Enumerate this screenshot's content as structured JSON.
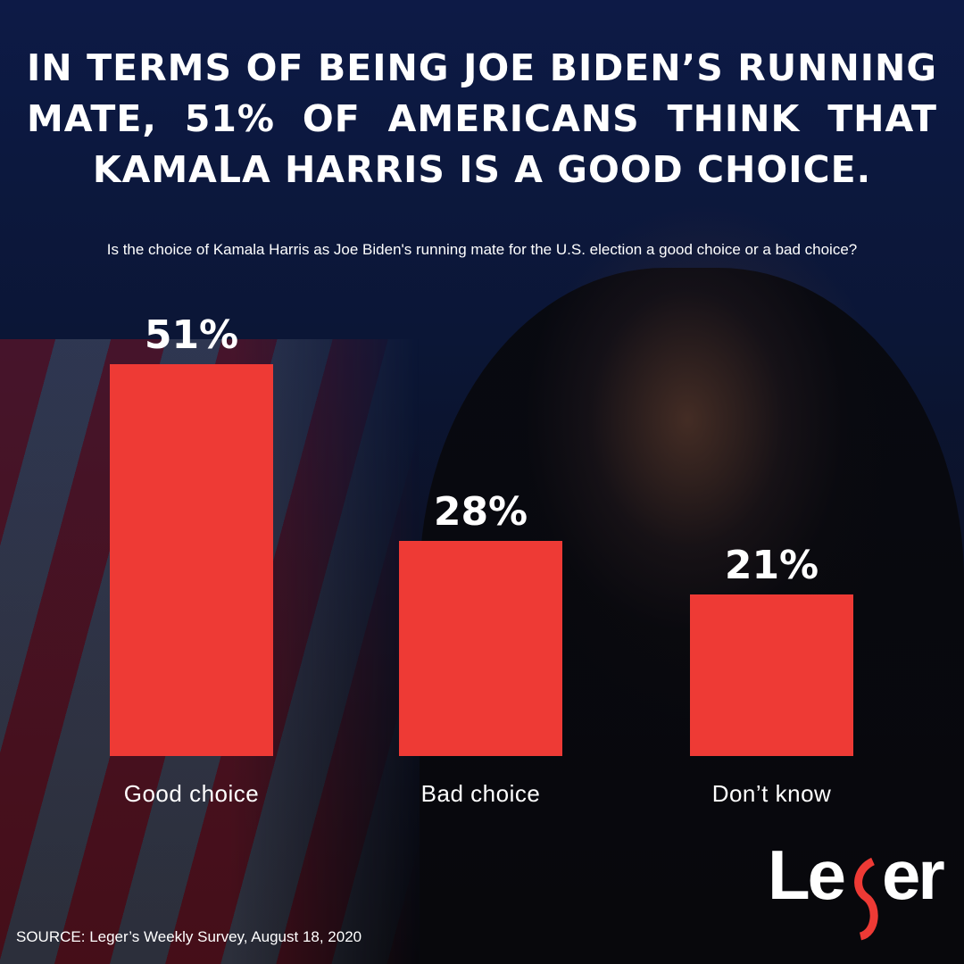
{
  "headline": "IN TERMS OF BEING JOE BIDEN’S RUNNING MATE, 51% OF AMERICANS THINK THAT KAMALA HARRIS IS A GOOD CHOICE.",
  "chart_data": {
    "type": "bar",
    "title": "Is the choice of Kamala Harris as Joe Biden's running mate for the U.S. election a good choice or a bad choice?",
    "categories": [
      "Good choice",
      "Bad choice",
      "Don’t know"
    ],
    "values": [
      51,
      28,
      21
    ],
    "value_labels": [
      "51%",
      "28%",
      "21%"
    ],
    "unit": "%",
    "ylim": [
      0,
      51
    ],
    "grid": false,
    "bar_color": "#ee3a35"
  },
  "source": {
    "label": "SOURCE:",
    "text": " Leger’s Weekly Survey, August 18, 2020"
  },
  "logo": {
    "text": "Leger",
    "accent_color": "#ee3a35"
  }
}
